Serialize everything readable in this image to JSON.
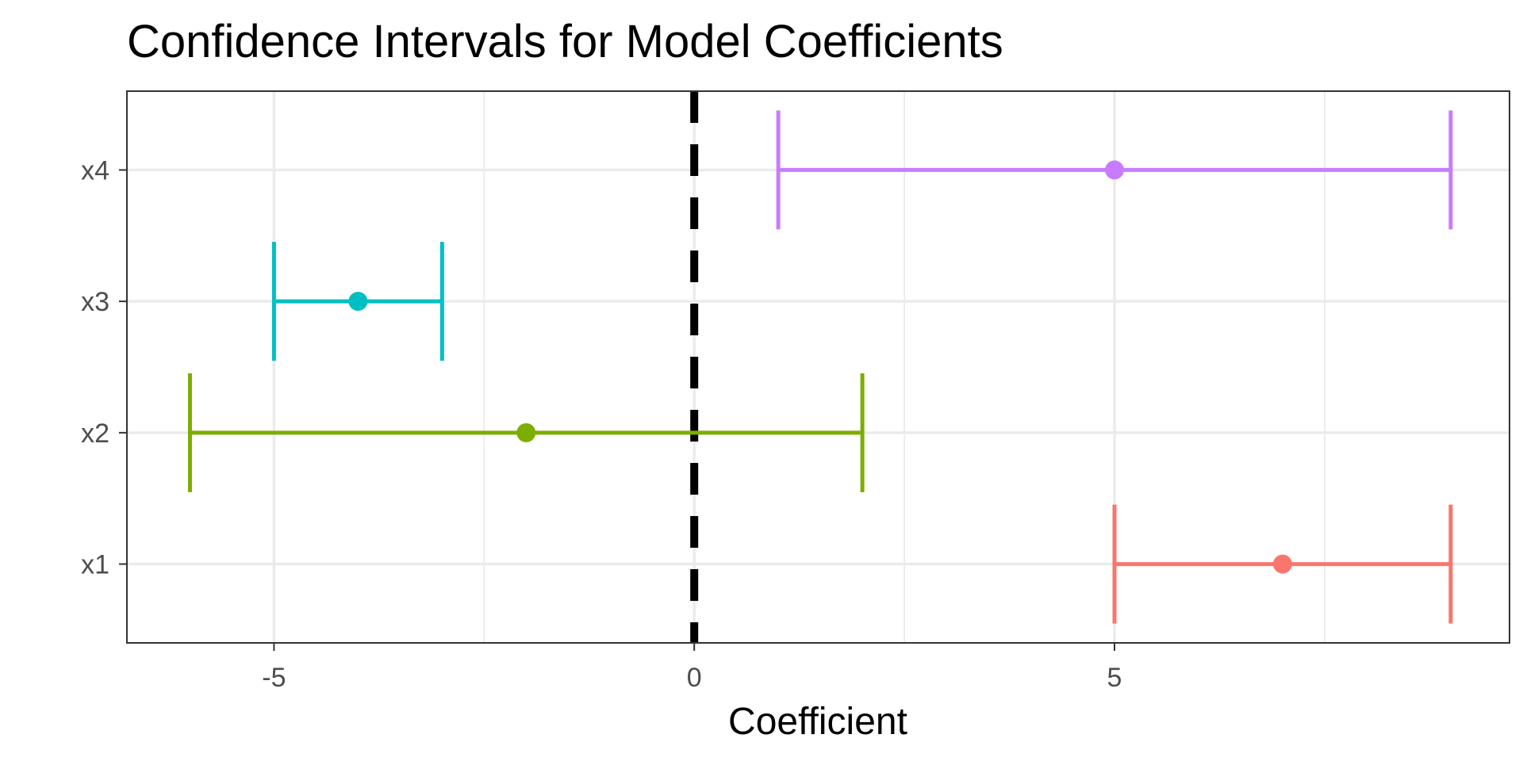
{
  "chart_data": {
    "type": "errorbar",
    "title": "Confidence Intervals for Model Coefficients",
    "xlabel": "Coefficient",
    "ylabel": "",
    "xlim": [
      -6.75,
      9.7
    ],
    "x_ticks": [
      -5,
      0,
      5
    ],
    "x_tick_labels": [
      "-5",
      "0",
      "5"
    ],
    "categories": [
      "x1",
      "x2",
      "x3",
      "x4"
    ],
    "estimates": [
      7,
      -2,
      -4,
      5
    ],
    "lower": [
      5,
      -6,
      -5,
      1
    ],
    "upper": [
      9,
      2,
      -3,
      9
    ],
    "colors": [
      "#f8766d",
      "#7cae00",
      "#00bfc4",
      "#c77cff"
    ],
    "reference_line": {
      "x": 0,
      "style": "dashed",
      "color": "#000000"
    },
    "grid": true,
    "legend": "none"
  }
}
